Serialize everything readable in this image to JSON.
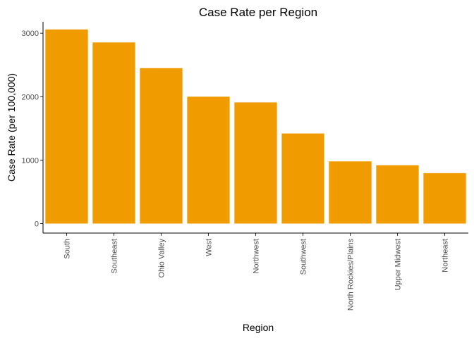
{
  "chart_data": {
    "type": "bar",
    "title": "Case Rate per Region",
    "xlabel": "Region",
    "ylabel": "Case Rate (per 100,000)",
    "categories": [
      "South",
      "Southeast",
      "Ohio Valley",
      "West",
      "Northwest",
      "Southwest",
      "North Rockies/Plains",
      "Upper Midwest",
      "Northeast"
    ],
    "values": [
      3060,
      2855,
      2450,
      2000,
      1910,
      1420,
      980,
      920,
      795
    ],
    "ylim": [
      -150,
      3180
    ],
    "yticks": [
      0,
      1000,
      2000,
      3000
    ],
    "yticks_labels": [
      "0",
      "1000",
      "2000",
      "3000"
    ],
    "grid": false,
    "legend": "none",
    "bar_color": "#F09B00"
  }
}
